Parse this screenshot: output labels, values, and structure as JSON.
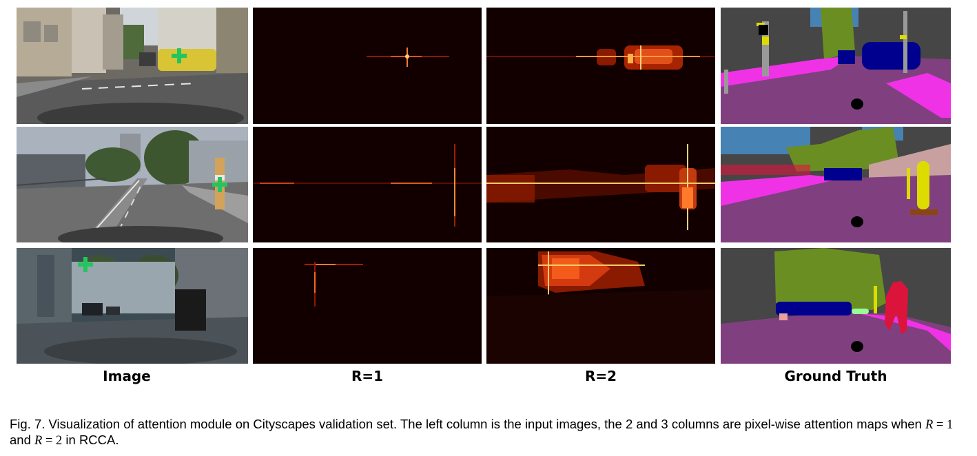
{
  "figure": {
    "column_labels": [
      "Image",
      "R=1",
      "R=2",
      "Ground Truth"
    ],
    "caption": {
      "part1": "Fig. 7. Visualization of attention module on Cityscapes validation set. The left column is the input images, the 2 and 3 columns are pixel-wise attention maps when ",
      "var1": "R",
      "eq1": " = ",
      "val1": "1",
      "part2": " and ",
      "var2": "R",
      "eq2": " = ",
      "val2": "2",
      "part3": " in RCCA."
    },
    "colors": {
      "marker": "#22c55e",
      "attention_dark": "#120000",
      "attention_hot": "#ffec8a",
      "road": "#80407f",
      "sidewalk": "#f032e6",
      "building": "#464646",
      "vegetation": "#6b8e23",
      "sky": "#4682b4",
      "car": "#00008e",
      "person": "#dc143c",
      "pole": "#999999",
      "traffic_sign": "#dcdc00",
      "wall": "#c8a0a0"
    }
  }
}
